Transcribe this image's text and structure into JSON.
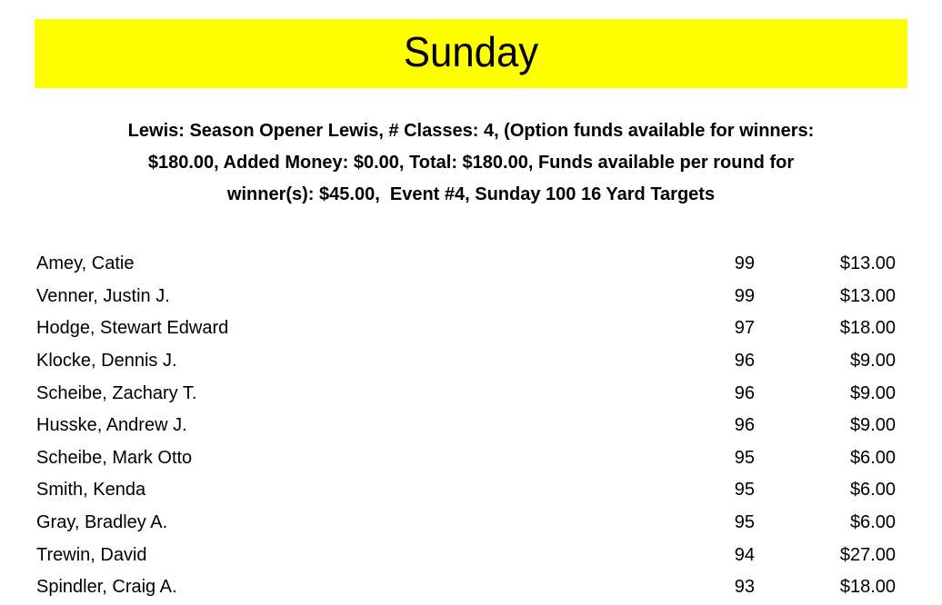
{
  "page": {
    "title": "Sunday",
    "banner_color": "#ffff00",
    "background_color": "#ffffff",
    "text_color": "#000000"
  },
  "event_info": {
    "lines": [
      "Lewis: Season Opener Lewis, # Classes: 4, (Option funds available for winners:",
      "$180.00, Added Money: $0.00, Total: $180.00, Funds available per round for",
      "winner(s): $45.00,  Event #4, Sunday 100 16 Yard Targets"
    ]
  },
  "results": {
    "rows": [
      {
        "name": "Amey, Catie",
        "score": "99",
        "winnings": "$13.00"
      },
      {
        "name": "Venner, Justin J.",
        "score": "99",
        "winnings": "$13.00"
      },
      {
        "name": "Hodge, Stewart Edward",
        "score": "97",
        "winnings": "$18.00"
      },
      {
        "name": "Klocke, Dennis J.",
        "score": "96",
        "winnings": "$9.00"
      },
      {
        "name": "Scheibe, Zachary T.",
        "score": "96",
        "winnings": "$9.00"
      },
      {
        "name": "Husske, Andrew J.",
        "score": "96",
        "winnings": "$9.00"
      },
      {
        "name": "Scheibe, Mark Otto",
        "score": "95",
        "winnings": "$6.00"
      },
      {
        "name": "Smith, Kenda",
        "score": "95",
        "winnings": "$6.00"
      },
      {
        "name": "Gray, Bradley A.",
        "score": "95",
        "winnings": "$6.00"
      },
      {
        "name": "Trewin, David",
        "score": "94",
        "winnings": "$27.00"
      },
      {
        "name": "Spindler, Craig A.",
        "score": "93",
        "winnings": "$18.00"
      }
    ]
  }
}
